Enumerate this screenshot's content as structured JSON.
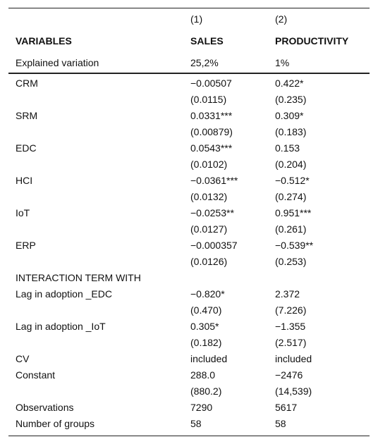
{
  "header": {
    "column_numbers": [
      "(1)",
      "(2)"
    ],
    "variables_label": "VARIABLES",
    "columns": [
      "SALES",
      "PRODUCTIVITY"
    ],
    "explained_label": "Explained variation",
    "explained": [
      "25,2%",
      "1%"
    ]
  },
  "rows": [
    {
      "label": "CRM",
      "sales": "−0.00507",
      "productivity": "0.422*"
    },
    {
      "sales": "(0.0115)",
      "productivity": "(0.235)"
    },
    {
      "label": "SRM",
      "sales": "0.0331***",
      "productivity": "0.309*"
    },
    {
      "sales": "(0.00879)",
      "productivity": "(0.183)"
    },
    {
      "label": "EDC",
      "sales": "0.0543***",
      "productivity": "0.153"
    },
    {
      "sales": "(0.0102)",
      "productivity": "(0.204)"
    },
    {
      "label": "HCI",
      "sales": "−0.0361***",
      "productivity": "−0.512*"
    },
    {
      "sales": "(0.0132)",
      "productivity": "(0.274)"
    },
    {
      "label": "IoT",
      "sales": "−0.0253**",
      "productivity": "0.951***"
    },
    {
      "sales": "(0.0127)",
      "productivity": "(0.261)"
    },
    {
      "label": "ERP",
      "sales": "−0.000357",
      "productivity": "−0.539**"
    },
    {
      "sales": "(0.0126)",
      "productivity": "(0.253)"
    },
    {
      "label": "INTERACTION TERM WITH"
    },
    {
      "label": "Lag in adoption _EDC",
      "sales": "−0.820*",
      "productivity": "2.372"
    },
    {
      "sales": "(0.470)",
      "productivity": "(7.226)"
    },
    {
      "label": "Lag in adoption _IoT",
      "sales": "0.305*",
      "productivity": "−1.355"
    },
    {
      "sales": "(0.182)",
      "productivity": "(2.517)"
    },
    {
      "label": "CV",
      "sales": "included",
      "productivity": "included"
    },
    {
      "label": "Constant",
      "sales": "288.0",
      "productivity": "−2476"
    },
    {
      "sales": "(880.2)",
      "productivity": "(14,539)"
    },
    {
      "label": "Observations",
      "sales": "7290",
      "productivity": "5617"
    },
    {
      "label": "Number of groups",
      "sales": "58",
      "productivity": "58"
    }
  ]
}
